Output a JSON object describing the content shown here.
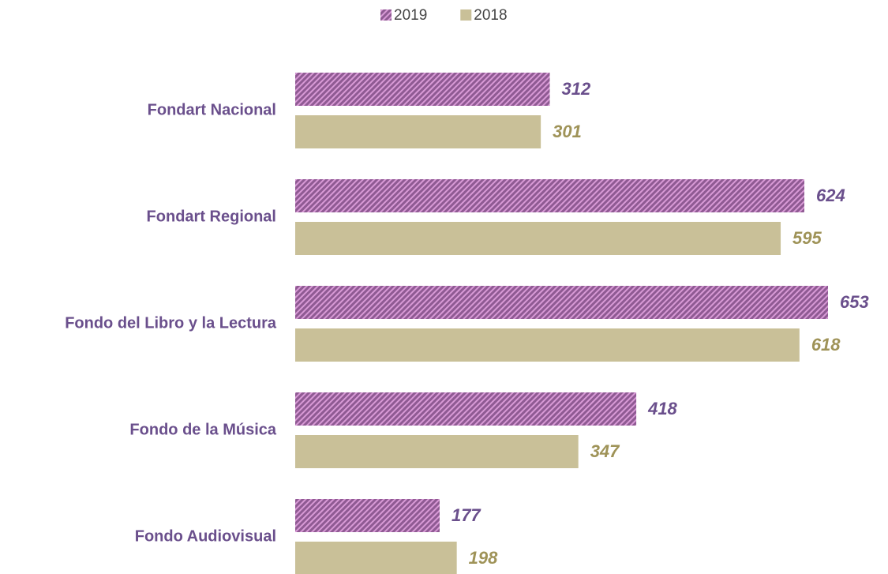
{
  "chart_data": {
    "type": "hbar",
    "categories": [
      "Fondart Nacional",
      "Fondart Regional",
      "Fondo del Libro y la Lectura",
      "Fondo de la Música",
      "Fondo Audiovisual"
    ],
    "series": [
      {
        "name": "2019",
        "color": "#8f5a93",
        "hatch": true,
        "values": [
          312,
          624,
          653,
          418,
          177
        ]
      },
      {
        "name": "2018",
        "color": "#c9c098",
        "hatch": false,
        "values": [
          301,
          595,
          618,
          347,
          198
        ]
      }
    ],
    "legend": "top"
  }
}
